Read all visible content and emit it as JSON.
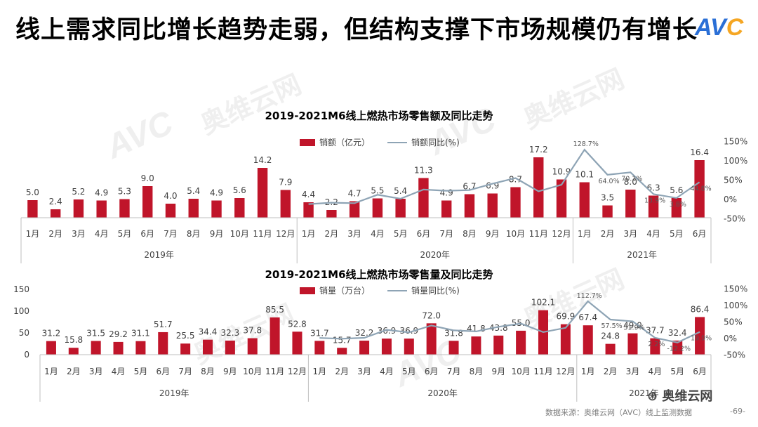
{
  "title": "线上需求同比增长趋势走弱，但结构支撑下市场规模仍有增长",
  "logo": {
    "text_main": "AV",
    "text_c": "C",
    "color": "#2a6fd6",
    "accent": "#f5a623"
  },
  "watermark": {
    "latin": "AVC",
    "cn": "奥维云网"
  },
  "colors": {
    "bar": "#c0152a",
    "line": "#8ea4b5",
    "axis": "#bfbfbf",
    "text": "#404040"
  },
  "chart_data": [
    {
      "type": "bar",
      "title": "2019-2021M6线上燃热市场零售额及同比走势",
      "series": [
        {
          "name": "销额（亿元）",
          "kind": "bar",
          "values": [
            5.0,
            2.4,
            5.2,
            4.9,
            5.3,
            9.0,
            4.0,
            5.4,
            4.9,
            5.6,
            14.2,
            7.9,
            4.4,
            2.2,
            4.7,
            5.5,
            5.4,
            11.3,
            4.9,
            6.7,
            6.9,
            8.7,
            17.2,
            10.9,
            10.1,
            3.5,
            8.0,
            6.3,
            5.6,
            16.4
          ]
        },
        {
          "name": "销额同比(%)",
          "kind": "line",
          "values": [
            null,
            null,
            null,
            null,
            null,
            null,
            null,
            null,
            null,
            null,
            null,
            null,
            -12.0,
            -8.3,
            -9.6,
            12.2,
            1.9,
            25.6,
            22.5,
            24.1,
            40.8,
            55.4,
            21.1,
            38.0,
            128.7,
            64.0,
            70.1,
            13.9,
            3.8,
            44.8
          ]
        }
      ],
      "value_labels": [
        "5.0",
        "2.4",
        "5.2",
        "4.9",
        "5.3",
        "9.0",
        "4.0",
        "5.4",
        "4.9",
        "5.6",
        "14.2",
        "7.9",
        "4.4",
        "2.2",
        "4.7",
        "5.5",
        "5.4",
        "11.3",
        "4.9",
        "6.7",
        "6.9",
        "8.7",
        "17.2",
        "10.9",
        "10.1",
        "3.5",
        "8.0",
        "6.3",
        "5.6",
        "16.4"
      ],
      "pct_labels": [
        {
          "i": 24,
          "text": "128.7%"
        },
        {
          "i": 25,
          "text": "64.0%"
        },
        {
          "i": 26,
          "text": "70.1%"
        },
        {
          "i": 27,
          "text": "13.9%"
        },
        {
          "i": 28,
          "text": "3.8%"
        },
        {
          "i": 29,
          "text": "44.8%"
        }
      ],
      "categories": [
        "1月",
        "2月",
        "3月",
        "4月",
        "5月",
        "6月",
        "7月",
        "8月",
        "9月",
        "10月",
        "11月",
        "12月",
        "1月",
        "2月",
        "3月",
        "4月",
        "5月",
        "6月",
        "7月",
        "8月",
        "9月",
        "10月",
        "11月",
        "12月",
        "1月",
        "2月",
        "3月",
        "4月",
        "5月",
        "6月"
      ],
      "years": [
        "2019年",
        "2020年",
        "2021年"
      ],
      "y2_ticks": [
        "150%",
        "100%",
        "50%",
        "0%",
        "-50%"
      ],
      "y2lim": [
        -50,
        150
      ],
      "ylim": [
        0,
        24
      ]
    },
    {
      "type": "bar",
      "title": "2019-2021M6线上燃热市场零售量及同比走势",
      "series": [
        {
          "name": "销量（万台）",
          "kind": "bar",
          "values": [
            31.2,
            15.8,
            31.5,
            29.2,
            31.1,
            51.7,
            25.5,
            34.4,
            32.3,
            37.8,
            85.5,
            52.8,
            31.7,
            15.7,
            32.2,
            36.9,
            36.9,
            72.0,
            31.8,
            41.8,
            43.8,
            55.0,
            102.1,
            69.9,
            67.4,
            24.8,
            49.0,
            37.7,
            32.4,
            86.4
          ]
        },
        {
          "name": "销量同比(%)",
          "kind": "line",
          "values": [
            null,
            null,
            null,
            null,
            null,
            null,
            null,
            null,
            null,
            null,
            null,
            null,
            1.6,
            -0.6,
            2.2,
            26.4,
            18.6,
            39.3,
            24.7,
            21.5,
            35.6,
            45.5,
            19.4,
            32.4,
            112.7,
            57.5,
            51.9,
            2.2,
            -12.2,
            19.9
          ]
        }
      ],
      "value_labels": [
        "31.2",
        "15.8",
        "31.5",
        "29.2",
        "31.1",
        "51.7",
        "25.5",
        "34.4",
        "32.3",
        "37.8",
        "85.5",
        "52.8",
        "31.7",
        "15.7",
        "32.2",
        "36.9",
        "36.9",
        "72.0",
        "31.8",
        "41.8",
        "43.8",
        "55.0",
        "102.1",
        "69.9",
        "67.4",
        "24.8",
        "49.0",
        "37.7",
        "32.4",
        "86.4"
      ],
      "pct_labels": [
        {
          "i": 24,
          "text": "112.7%"
        },
        {
          "i": 25,
          "text": "57.5%"
        },
        {
          "i": 26,
          "text": "51.9%"
        },
        {
          "i": 27,
          "text": "2.2%"
        },
        {
          "i": 28,
          "text": "-12.2%"
        },
        {
          "i": 29,
          "text": "19.9%"
        }
      ],
      "categories": [
        "1月",
        "2月",
        "3月",
        "4月",
        "5月",
        "6月",
        "7月",
        "8月",
        "9月",
        "10月",
        "11月",
        "12月",
        "1月",
        "2月",
        "3月",
        "4月",
        "5月",
        "6月",
        "7月",
        "8月",
        "9月",
        "10月",
        "11月",
        "12月",
        "1月",
        "2月",
        "3月",
        "4月",
        "5月",
        "6月"
      ],
      "years": [
        "2019年",
        "2020年",
        "2021年"
      ],
      "y_ticks": [
        "150",
        "100",
        "50",
        "0"
      ],
      "y2_ticks": [
        "150%",
        "100%",
        "50%",
        "0%",
        "-50%"
      ],
      "ylim": [
        0,
        150
      ],
      "y2lim": [
        -50,
        150
      ]
    }
  ],
  "footer": {
    "source": "数据来源：奥维云网（AVC）线上监测数据",
    "page": "-69-",
    "wechat": "奥维云网"
  }
}
